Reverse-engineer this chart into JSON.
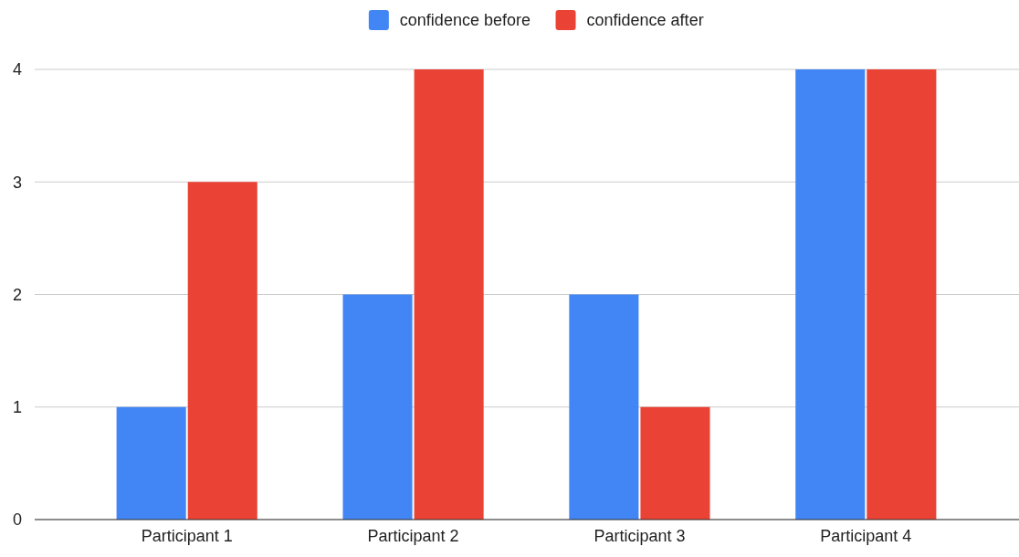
{
  "chart_data": {
    "type": "bar",
    "categories": [
      "Participant 1",
      "Participant 2",
      "Participant 3",
      "Participant 4"
    ],
    "series": [
      {
        "name": "confidence before",
        "color": "#4285f4",
        "values": [
          1,
          2,
          2,
          4
        ]
      },
      {
        "name": "confidence after",
        "color": "#ea4335",
        "values": [
          3,
          4,
          1,
          4
        ]
      }
    ],
    "ylim": [
      0,
      4
    ],
    "yticks": [
      0,
      1,
      2,
      3,
      4
    ],
    "grid": "y",
    "legend": "top"
  }
}
